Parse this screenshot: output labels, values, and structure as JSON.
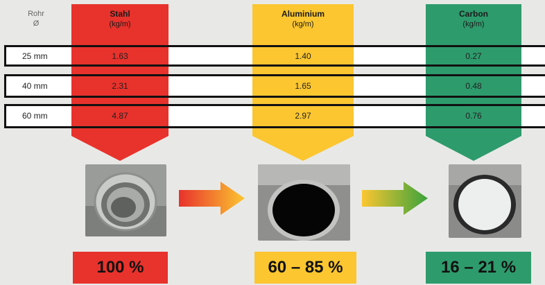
{
  "header": {
    "rohr_label": "Rohr",
    "diameter_symbol": "Ø"
  },
  "columns": [
    {
      "name": "Stahl",
      "unit": "(kg/m)",
      "color": "#e8322c",
      "percentage": "100 %"
    },
    {
      "name": "Aluminium",
      "unit": "(kg/m)",
      "color": "#fbc630",
      "percentage": "60 – 85 %"
    },
    {
      "name": "Carbon",
      "unit": "(kg/m)",
      "color": "#2e9b6c",
      "percentage": "16 – 21 %"
    }
  ],
  "rows": [
    {
      "label": "25 mm",
      "values": [
        "1.63",
        "1.40",
        "0.27"
      ]
    },
    {
      "label": "40 mm",
      "values": [
        "2.31",
        "1.65",
        "0.48"
      ]
    },
    {
      "label": "60 mm",
      "values": [
        "4.87",
        "2.97",
        "0.76"
      ]
    }
  ],
  "arrows": [
    {
      "icon": "red-to-yellow-arrow-icon",
      "from": "#e8322c",
      "to": "#fbc630"
    },
    {
      "icon": "yellow-to-green-arrow-icon",
      "from": "#fbc630",
      "to": "#3aa33c"
    }
  ]
}
